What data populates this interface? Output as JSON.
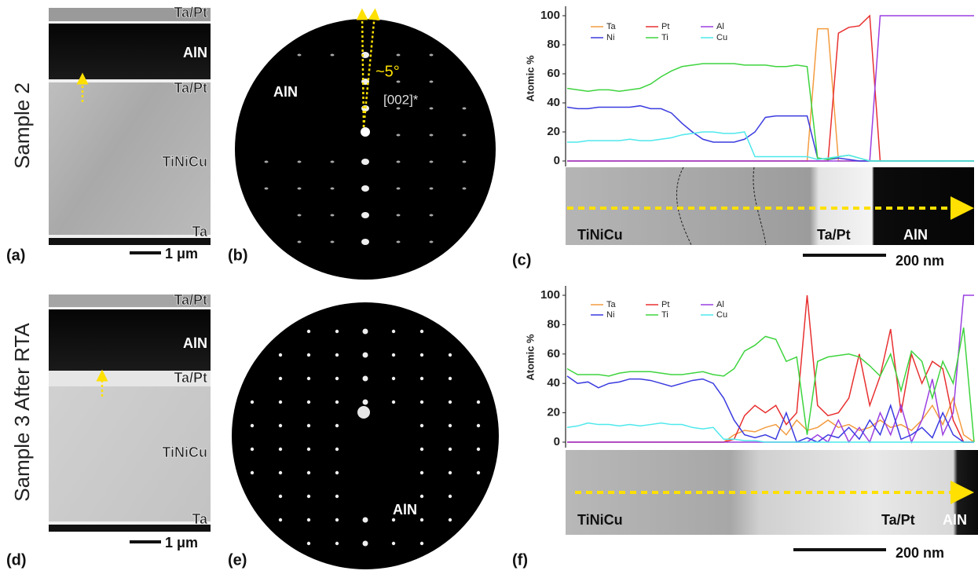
{
  "row_labels": [
    "Sample 2",
    "Sample 3 After RTA"
  ],
  "micrographs": [
    {
      "label": "(a)",
      "layers": [
        "Ta/Pt",
        "AlN",
        "Ta/Pt",
        "TiNiCu",
        "Ta"
      ],
      "scale_bar": "1 μm"
    },
    {
      "label": "(d)",
      "layers": [
        "Ta/Pt",
        "AlN",
        "Ta/Pt",
        "TiNiCu",
        "Ta"
      ],
      "scale_bar": "1 μm"
    }
  ],
  "diffraction": [
    {
      "label": "(b)",
      "annotations": [
        "~5°",
        "[002]*"
      ],
      "phase": "AlN"
    },
    {
      "label": "(e)",
      "phase": "AlN"
    }
  ],
  "chart_data": [
    {
      "type": "line",
      "label": "(c)",
      "ylabel": "Atomic %",
      "ylim": [
        0,
        100
      ],
      "yticks": [
        0,
        20,
        40,
        60,
        80,
        100
      ],
      "categories": [
        null,
        null,
        null,
        null,
        null,
        null,
        null,
        null,
        null,
        null,
        null,
        null,
        null,
        null,
        null,
        null,
        null,
        null,
        null,
        null,
        null,
        null,
        null,
        null,
        null,
        null,
        null,
        null,
        null,
        null,
        null,
        null,
        null,
        null,
        null,
        null,
        null,
        null,
        null,
        null
      ],
      "series": [
        {
          "name": "Ta",
          "color": "#f39c40",
          "values": [
            0,
            0,
            0,
            0,
            0,
            0,
            0,
            0,
            0,
            0,
            0,
            0,
            0,
            0,
            0,
            0,
            0,
            0,
            0,
            0,
            0,
            0,
            0,
            0,
            91,
            91,
            0,
            0,
            0,
            0,
            0,
            0,
            0,
            0,
            0,
            0,
            0,
            0,
            0,
            0
          ]
        },
        {
          "name": "Pt",
          "color": "#e83030",
          "values": [
            0,
            0,
            0,
            0,
            0,
            0,
            0,
            0,
            0,
            0,
            0,
            0,
            0,
            0,
            0,
            0,
            0,
            0,
            0,
            0,
            0,
            0,
            0,
            0,
            0,
            0,
            88,
            92,
            93,
            100,
            0,
            0,
            0,
            0,
            0,
            0,
            0,
            0,
            0,
            0
          ]
        },
        {
          "name": "Al",
          "color": "#9b3fe0",
          "values": [
            0,
            0,
            0,
            0,
            0,
            0,
            0,
            0,
            0,
            0,
            0,
            0,
            0,
            0,
            0,
            0,
            0,
            0,
            0,
            0,
            0,
            0,
            0,
            0,
            0,
            0,
            0,
            0,
            0,
            0,
            100,
            100,
            100,
            100,
            100,
            100,
            100,
            100,
            100,
            100
          ]
        },
        {
          "name": "Ni",
          "color": "#3a3ae0",
          "values": [
            37,
            36,
            36,
            37,
            37,
            37,
            37,
            38,
            36,
            36,
            33,
            26,
            20,
            15,
            13,
            13,
            13,
            15,
            20,
            30,
            31,
            31,
            31,
            31,
            2,
            1,
            2,
            1,
            0,
            0,
            0,
            0,
            0,
            0,
            0,
            0,
            0,
            0,
            0,
            0
          ]
        },
        {
          "name": "Ti",
          "color": "#3ed43e",
          "values": [
            50,
            49,
            48,
            49,
            49,
            48,
            49,
            50,
            53,
            58,
            62,
            65,
            66,
            67,
            67,
            67,
            67,
            66,
            66,
            66,
            65,
            65,
            66,
            65,
            2,
            1,
            3,
            4,
            2,
            0,
            0,
            0,
            0,
            0,
            0,
            0,
            0,
            0,
            0,
            0
          ]
        },
        {
          "name": "Cu",
          "color": "#4ee8ec",
          "values": [
            13,
            13,
            14,
            14,
            14,
            14,
            15,
            14,
            14,
            15,
            16,
            18,
            19,
            20,
            20,
            19,
            19,
            20,
            3,
            3,
            3,
            3,
            3,
            3,
            1,
            2,
            3,
            4,
            2,
            0,
            0,
            0,
            0,
            0,
            0,
            0,
            0,
            0,
            0,
            0
          ]
        }
      ],
      "image_labels": [
        "TiNiCu",
        "Ta/Pt",
        "AlN"
      ],
      "scale_bar": "200 nm"
    },
    {
      "type": "line",
      "label": "(f)",
      "ylabel": "Atomic %",
      "ylim": [
        0,
        100
      ],
      "yticks": [
        0,
        20,
        40,
        60,
        80,
        100
      ],
      "categories": [
        null,
        null,
        null,
        null,
        null,
        null,
        null,
        null,
        null,
        null,
        null,
        null,
        null,
        null,
        null,
        null,
        null,
        null,
        null,
        null,
        null,
        null,
        null,
        null,
        null,
        null,
        null,
        null,
        null,
        null,
        null,
        null,
        null,
        null,
        null,
        null,
        null,
        null,
        null,
        null
      ],
      "series": [
        {
          "name": "Ta",
          "color": "#f39c40",
          "values": [
            0,
            0,
            0,
            0,
            0,
            0,
            0,
            0,
            0,
            0,
            0,
            0,
            0,
            0,
            0,
            0,
            5,
            8,
            7,
            10,
            12,
            5,
            15,
            8,
            10,
            15,
            10,
            12,
            8,
            10,
            15,
            10,
            12,
            8,
            15,
            25,
            12,
            30,
            5,
            0
          ]
        },
        {
          "name": "Pt",
          "color": "#e83030",
          "values": [
            0,
            0,
            0,
            0,
            0,
            0,
            0,
            0,
            0,
            0,
            0,
            0,
            0,
            0,
            0,
            0,
            2,
            18,
            25,
            20,
            25,
            12,
            20,
            100,
            25,
            18,
            20,
            30,
            60,
            25,
            45,
            77,
            20,
            60,
            40,
            55,
            50,
            15,
            0,
            0
          ]
        },
        {
          "name": "Al",
          "color": "#9b3fe0",
          "values": [
            0,
            0,
            0,
            0,
            0,
            0,
            0,
            0,
            0,
            0,
            0,
            0,
            0,
            0,
            0,
            0,
            0,
            0,
            0,
            0,
            0,
            0,
            0,
            0,
            5,
            0,
            15,
            0,
            10,
            0,
            20,
            5,
            25,
            0,
            15,
            43,
            5,
            20,
            100,
            100
          ]
        },
        {
          "name": "Ni",
          "color": "#3a3ae0",
          "values": [
            45,
            40,
            41,
            37,
            40,
            41,
            43,
            43,
            42,
            40,
            38,
            40,
            42,
            43,
            40,
            30,
            15,
            5,
            3,
            5,
            2,
            20,
            0,
            3,
            0,
            5,
            3,
            10,
            2,
            15,
            5,
            25,
            2,
            5,
            10,
            3,
            20,
            5,
            0,
            0
          ]
        },
        {
          "name": "Ti",
          "color": "#3ed43e",
          "values": [
            50,
            46,
            46,
            46,
            45,
            47,
            48,
            48,
            48,
            47,
            46,
            46,
            47,
            48,
            46,
            45,
            50,
            62,
            66,
            72,
            70,
            55,
            58,
            5,
            55,
            58,
            59,
            60,
            58,
            52,
            45,
            60,
            35,
            62,
            55,
            30,
            55,
            40,
            78,
            0
          ]
        },
        {
          "name": "Cu",
          "color": "#4ee8ec",
          "values": [
            10,
            11,
            13,
            12,
            12,
            11,
            12,
            11,
            12,
            13,
            12,
            12,
            10,
            9,
            10,
            2,
            2,
            1,
            1,
            0,
            0,
            0,
            0,
            0,
            0,
            0,
            0,
            0,
            0,
            0,
            0,
            0,
            0,
            0,
            0,
            0,
            0,
            0,
            0,
            0
          ]
        }
      ],
      "image_labels": [
        "TiNiCu",
        "Ta/Pt",
        "AlN"
      ],
      "scale_bar": "200 nm"
    }
  ]
}
